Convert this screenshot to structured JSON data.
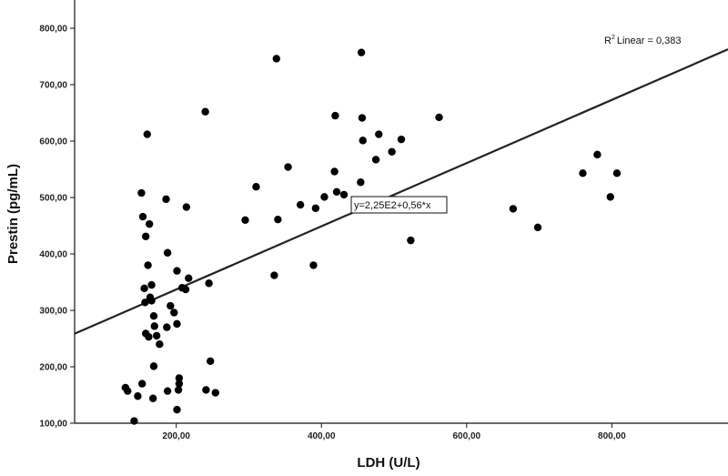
{
  "chart_data": {
    "type": "scatter",
    "title": "",
    "xlabel": "LDH (U/L)",
    "ylabel": "Prestin (pg/mL)",
    "xlim": [
      60,
      960
    ],
    "ylim": [
      100,
      850
    ],
    "x_ticks": [
      {
        "value": 200,
        "label": "200,00"
      },
      {
        "value": 400,
        "label": "400,00"
      },
      {
        "value": 600,
        "label": "600,00"
      },
      {
        "value": 800,
        "label": "800,00"
      }
    ],
    "y_ticks": [
      {
        "value": 100,
        "label": "100,00"
      },
      {
        "value": 200,
        "label": "200,00"
      },
      {
        "value": 300,
        "label": "300,00"
      },
      {
        "value": 400,
        "label": "400,00"
      },
      {
        "value": 500,
        "label": "500,00"
      },
      {
        "value": 600,
        "label": "600,00"
      },
      {
        "value": 700,
        "label": "700,00"
      },
      {
        "value": 800,
        "label": "800,00"
      }
    ],
    "grid": false,
    "points": [
      [
        130,
        163
      ],
      [
        133,
        157
      ],
      [
        142,
        104
      ],
      [
        147,
        148
      ],
      [
        152,
        508
      ],
      [
        153,
        170
      ],
      [
        154,
        466
      ],
      [
        156,
        339
      ],
      [
        157,
        314
      ],
      [
        158,
        259
      ],
      [
        158,
        431
      ],
      [
        160,
        612
      ],
      [
        161,
        380
      ],
      [
        162,
        253
      ],
      [
        163,
        453
      ],
      [
        164,
        323
      ],
      [
        166,
        345
      ],
      [
        166,
        317
      ],
      [
        168,
        144
      ],
      [
        169,
        290
      ],
      [
        169,
        201
      ],
      [
        170,
        272
      ],
      [
        173,
        255
      ],
      [
        177,
        240
      ],
      [
        186,
        497
      ],
      [
        187,
        270
      ],
      [
        188,
        402
      ],
      [
        188,
        157
      ],
      [
        192,
        308
      ],
      [
        197,
        296
      ],
      [
        201,
        124
      ],
      [
        201,
        276
      ],
      [
        201,
        370
      ],
      [
        203,
        159
      ],
      [
        204,
        180
      ],
      [
        204,
        170
      ],
      [
        208,
        340
      ],
      [
        213,
        337
      ],
      [
        214,
        483
      ],
      [
        217,
        357
      ],
      [
        240,
        652
      ],
      [
        241,
        159
      ],
      [
        245,
        348
      ],
      [
        247,
        210
      ],
      [
        254,
        154
      ],
      [
        295,
        460
      ],
      [
        310,
        519
      ],
      [
        335,
        362
      ],
      [
        338,
        746
      ],
      [
        340,
        461
      ],
      [
        354,
        554
      ],
      [
        371,
        487
      ],
      [
        389,
        380
      ],
      [
        392,
        481
      ],
      [
        404,
        501
      ],
      [
        418,
        546
      ],
      [
        419,
        645
      ],
      [
        421,
        510
      ],
      [
        431,
        505
      ],
      [
        454,
        527
      ],
      [
        455,
        757
      ],
      [
        456,
        641
      ],
      [
        457,
        601
      ],
      [
        475,
        567
      ],
      [
        479,
        612
      ],
      [
        497,
        581
      ],
      [
        502,
        496
      ],
      [
        510,
        603
      ],
      [
        523,
        424
      ],
      [
        562,
        642
      ],
      [
        664,
        480
      ],
      [
        698,
        447
      ],
      [
        760,
        543
      ],
      [
        780,
        576
      ],
      [
        798,
        501
      ],
      [
        807,
        543
      ]
    ],
    "fit_line": {
      "intercept": 225,
      "slope": 0.56,
      "x_range": [
        60,
        960
      ]
    },
    "fit_label": "y=2,25E2+0,56*x",
    "r2_label": "Linear = 0,383",
    "r2_symbol": "R",
    "r2_sup": "2",
    "colors": {
      "points": "#000000",
      "line": "#222222",
      "axes": "#111111"
    }
  }
}
